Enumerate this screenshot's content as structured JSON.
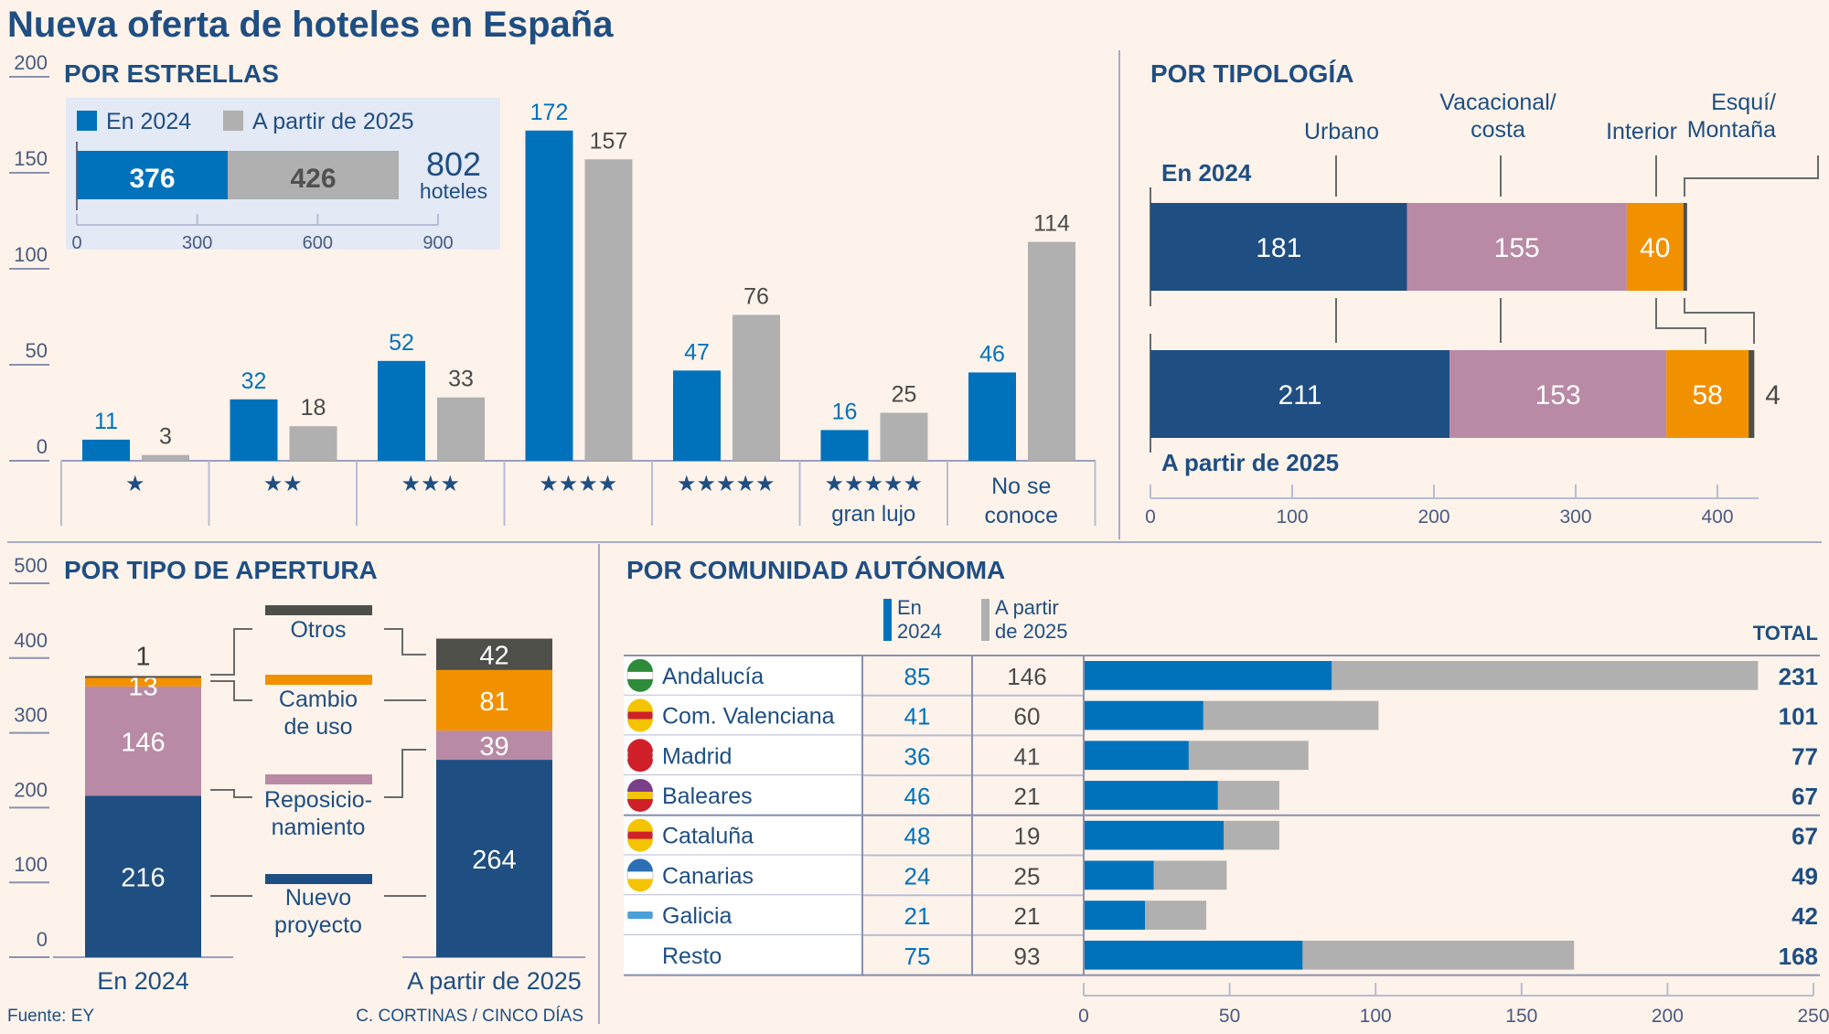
{
  "title": "Nueva oferta de hoteles en España",
  "source": "Fuente: EY",
  "credit": "C. CORTINAS / CINCO DÍAS",
  "colors": {
    "blue": "#0072bb",
    "gray": "#b0b0b0",
    "navy": "#1f4e82",
    "mauve": "#b98aa5",
    "orange": "#f29100",
    "dark": "#4f4f4a",
    "inset_bg": "#e3e9f5",
    "bg": "#fdf3ea"
  },
  "chart_data": [
    {
      "id": "estrellas",
      "type": "bar",
      "title": "POR ESTRELLAS",
      "categories": [
        "★",
        "★★",
        "★★★",
        "★★★★",
        "★★★★★",
        "★★★★★\ngran lujo",
        "No se\nconoce"
      ],
      "series": [
        {
          "name": "En 2024",
          "values": [
            11,
            32,
            52,
            172,
            47,
            16,
            46
          ]
        },
        {
          "name": "A partir de 2025",
          "values": [
            3,
            18,
            33,
            157,
            76,
            25,
            114
          ]
        }
      ],
      "yticks": [
        0,
        50,
        100,
        150,
        200
      ],
      "ylim": [
        0,
        200
      ],
      "legend": "top-left inset"
    },
    {
      "id": "total",
      "type": "bar",
      "title": "",
      "orientation": "horizontal-stacked",
      "series": [
        {
          "name": "En 2024",
          "values": [
            376
          ]
        },
        {
          "name": "A partir de 2025",
          "values": [
            426
          ]
        }
      ],
      "total_value": "802",
      "total_unit": "hoteles",
      "xticks": [
        0,
        300,
        600,
        900
      ],
      "xlim": [
        0,
        900
      ]
    },
    {
      "id": "tipologia",
      "type": "bar",
      "orientation": "horizontal-stacked",
      "title": "POR TIPOLOGÍA",
      "categories": [
        "En 2024",
        "A partir de 2025"
      ],
      "series": [
        {
          "name": "Urbano",
          "values": [
            181,
            211
          ]
        },
        {
          "name": "Vacacional/\ncosta",
          "values": [
            155,
            153
          ]
        },
        {
          "name": "Interior",
          "values": [
            40,
            58
          ]
        },
        {
          "name": "Esquí/\nMontaña",
          "values": [
            1,
            4
          ]
        }
      ],
      "xticks": [
        0,
        100,
        200,
        300,
        400
      ],
      "xlim": [
        0,
        430
      ]
    },
    {
      "id": "apertura",
      "type": "bar",
      "orientation": "vertical-stacked",
      "title": "POR TIPO DE APERTURA",
      "categories": [
        "En 2024",
        "A partir de 2025"
      ],
      "series": [
        {
          "name": "Nuevo\nproyecto",
          "values": [
            216,
            264
          ]
        },
        {
          "name": "Reposicio-\nnamiento",
          "values": [
            146,
            39
          ]
        },
        {
          "name": "Cambio\nde uso",
          "values": [
            13,
            81
          ]
        },
        {
          "name": "Otros",
          "values": [
            1,
            42
          ]
        }
      ],
      "yticks": [
        0,
        100,
        200,
        300,
        400,
        500
      ],
      "ylim": [
        0,
        500
      ]
    },
    {
      "id": "comunidad",
      "type": "bar",
      "orientation": "horizontal-stacked",
      "title": "POR COMUNIDAD AUTÓNOMA",
      "col_2024": "En\n2024",
      "col_2025": "A partir\nde 2025",
      "col_total": "TOTAL",
      "rows": [
        {
          "name": "Andalucía",
          "flag": "andalucia-flag",
          "v2024": 85,
          "v2025": 146,
          "total": 231
        },
        {
          "name": "Com. Valenciana",
          "flag": "valencia-flag",
          "v2024": 41,
          "v2025": 60,
          "total": 101
        },
        {
          "name": "Madrid",
          "flag": "madrid-flag",
          "v2024": 36,
          "v2025": 41,
          "total": 77
        },
        {
          "name": "Baleares",
          "flag": "baleares-flag",
          "v2024": 46,
          "v2025": 21,
          "total": 67
        },
        {
          "name": "Cataluña",
          "flag": "cataluna-flag",
          "v2024": 48,
          "v2025": 19,
          "total": 67
        },
        {
          "name": "Canarias",
          "flag": "canarias-flag",
          "v2024": 24,
          "v2025": 25,
          "total": 49
        },
        {
          "name": "Galicia",
          "flag": "galicia-flag",
          "v2024": 21,
          "v2025": 21,
          "total": 42
        },
        {
          "name": "Resto",
          "flag": "",
          "v2024": 75,
          "v2025": 93,
          "total": 168
        }
      ],
      "xticks": [
        0,
        50,
        100,
        150,
        200,
        250
      ],
      "xlim": [
        0,
        250
      ]
    }
  ]
}
